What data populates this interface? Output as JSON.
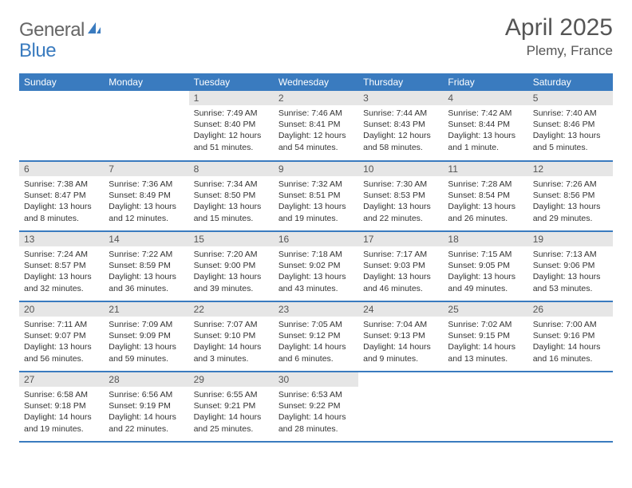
{
  "brand": {
    "part1": "General",
    "part2": "Blue"
  },
  "title": "April 2025",
  "location": "Plemy, France",
  "colors": {
    "accent": "#3a7bbf",
    "daynum_bg": "#e6e6e6",
    "text": "#333333",
    "muted": "#555555",
    "background": "#ffffff"
  },
  "dayHeaders": [
    "Sunday",
    "Monday",
    "Tuesday",
    "Wednesday",
    "Thursday",
    "Friday",
    "Saturday"
  ],
  "weeks": [
    [
      {
        "empty": true
      },
      {
        "empty": true
      },
      {
        "num": "1",
        "sunrise": "7:49 AM",
        "sunset": "8:40 PM",
        "daylight": "12 hours and 51 minutes."
      },
      {
        "num": "2",
        "sunrise": "7:46 AM",
        "sunset": "8:41 PM",
        "daylight": "12 hours and 54 minutes."
      },
      {
        "num": "3",
        "sunrise": "7:44 AM",
        "sunset": "8:43 PM",
        "daylight": "12 hours and 58 minutes."
      },
      {
        "num": "4",
        "sunrise": "7:42 AM",
        "sunset": "8:44 PM",
        "daylight": "13 hours and 1 minute."
      },
      {
        "num": "5",
        "sunrise": "7:40 AM",
        "sunset": "8:46 PM",
        "daylight": "13 hours and 5 minutes."
      }
    ],
    [
      {
        "num": "6",
        "sunrise": "7:38 AM",
        "sunset": "8:47 PM",
        "daylight": "13 hours and 8 minutes."
      },
      {
        "num": "7",
        "sunrise": "7:36 AM",
        "sunset": "8:49 PM",
        "daylight": "13 hours and 12 minutes."
      },
      {
        "num": "8",
        "sunrise": "7:34 AM",
        "sunset": "8:50 PM",
        "daylight": "13 hours and 15 minutes."
      },
      {
        "num": "9",
        "sunrise": "7:32 AM",
        "sunset": "8:51 PM",
        "daylight": "13 hours and 19 minutes."
      },
      {
        "num": "10",
        "sunrise": "7:30 AM",
        "sunset": "8:53 PM",
        "daylight": "13 hours and 22 minutes."
      },
      {
        "num": "11",
        "sunrise": "7:28 AM",
        "sunset": "8:54 PM",
        "daylight": "13 hours and 26 minutes."
      },
      {
        "num": "12",
        "sunrise": "7:26 AM",
        "sunset": "8:56 PM",
        "daylight": "13 hours and 29 minutes."
      }
    ],
    [
      {
        "num": "13",
        "sunrise": "7:24 AM",
        "sunset": "8:57 PM",
        "daylight": "13 hours and 32 minutes."
      },
      {
        "num": "14",
        "sunrise": "7:22 AM",
        "sunset": "8:59 PM",
        "daylight": "13 hours and 36 minutes."
      },
      {
        "num": "15",
        "sunrise": "7:20 AM",
        "sunset": "9:00 PM",
        "daylight": "13 hours and 39 minutes."
      },
      {
        "num": "16",
        "sunrise": "7:18 AM",
        "sunset": "9:02 PM",
        "daylight": "13 hours and 43 minutes."
      },
      {
        "num": "17",
        "sunrise": "7:17 AM",
        "sunset": "9:03 PM",
        "daylight": "13 hours and 46 minutes."
      },
      {
        "num": "18",
        "sunrise": "7:15 AM",
        "sunset": "9:05 PM",
        "daylight": "13 hours and 49 minutes."
      },
      {
        "num": "19",
        "sunrise": "7:13 AM",
        "sunset": "9:06 PM",
        "daylight": "13 hours and 53 minutes."
      }
    ],
    [
      {
        "num": "20",
        "sunrise": "7:11 AM",
        "sunset": "9:07 PM",
        "daylight": "13 hours and 56 minutes."
      },
      {
        "num": "21",
        "sunrise": "7:09 AM",
        "sunset": "9:09 PM",
        "daylight": "13 hours and 59 minutes."
      },
      {
        "num": "22",
        "sunrise": "7:07 AM",
        "sunset": "9:10 PM",
        "daylight": "14 hours and 3 minutes."
      },
      {
        "num": "23",
        "sunrise": "7:05 AM",
        "sunset": "9:12 PM",
        "daylight": "14 hours and 6 minutes."
      },
      {
        "num": "24",
        "sunrise": "7:04 AM",
        "sunset": "9:13 PM",
        "daylight": "14 hours and 9 minutes."
      },
      {
        "num": "25",
        "sunrise": "7:02 AM",
        "sunset": "9:15 PM",
        "daylight": "14 hours and 13 minutes."
      },
      {
        "num": "26",
        "sunrise": "7:00 AM",
        "sunset": "9:16 PM",
        "daylight": "14 hours and 16 minutes."
      }
    ],
    [
      {
        "num": "27",
        "sunrise": "6:58 AM",
        "sunset": "9:18 PM",
        "daylight": "14 hours and 19 minutes."
      },
      {
        "num": "28",
        "sunrise": "6:56 AM",
        "sunset": "9:19 PM",
        "daylight": "14 hours and 22 minutes."
      },
      {
        "num": "29",
        "sunrise": "6:55 AM",
        "sunset": "9:21 PM",
        "daylight": "14 hours and 25 minutes."
      },
      {
        "num": "30",
        "sunrise": "6:53 AM",
        "sunset": "9:22 PM",
        "daylight": "14 hours and 28 minutes."
      },
      {
        "empty": true
      },
      {
        "empty": true
      },
      {
        "empty": true
      }
    ]
  ],
  "labels": {
    "sunrise": "Sunrise: ",
    "sunset": "Sunset: ",
    "daylight": "Daylight: "
  }
}
